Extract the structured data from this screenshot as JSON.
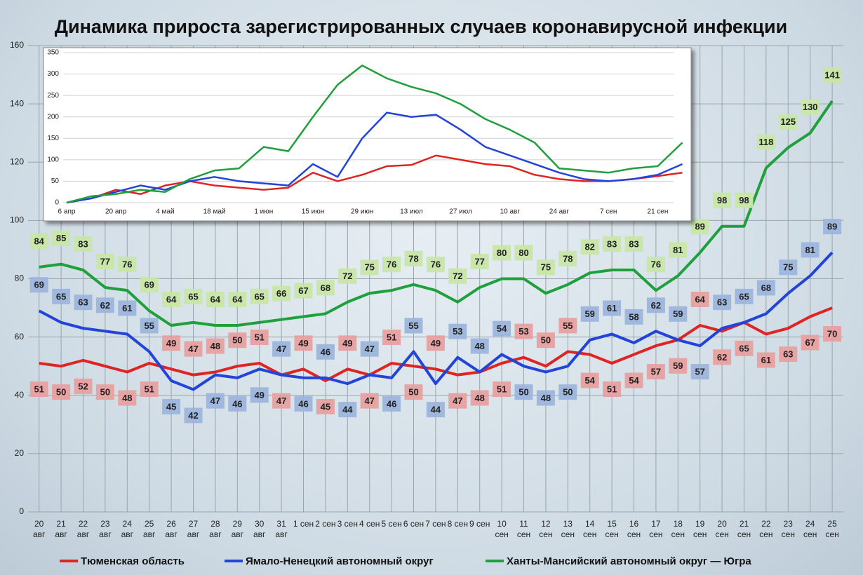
{
  "chart_data": [
    {
      "type": "line",
      "title": "Динамика прироста зарегистрированных случаев коронавирусной инфекции",
      "categories": [
        "20 авг",
        "21 авг",
        "22 авг",
        "23 авг",
        "24 авг",
        "25 авг",
        "26 авг",
        "27 авг",
        "28 авг",
        "29 авг",
        "30 авг",
        "31 авг",
        "1 сен",
        "2 сен",
        "3 сен",
        "4 сен",
        "5 сен",
        "6 сен",
        "7 сен",
        "8 сен",
        "9 сен",
        "10 сен",
        "11 сен",
        "12 сен",
        "13 сен",
        "14 сен",
        "15 сен",
        "16 сен",
        "17 сен",
        "18 сен",
        "19 сен",
        "20 сен",
        "21 сен",
        "22 сен",
        "23 сен",
        "24 сен",
        "25 сен"
      ],
      "series": [
        {
          "name": "Тюменская область",
          "color": "#e02424",
          "label_color": "#e8a0a0",
          "values": [
            51,
            50,
            52,
            50,
            48,
            51,
            49,
            47,
            48,
            50,
            51,
            47,
            49,
            45,
            49,
            47,
            51,
            50,
            49,
            47,
            48,
            51,
            53,
            50,
            55,
            54,
            51,
            54,
            57,
            59,
            64,
            62,
            65,
            61,
            63,
            67,
            70
          ]
        },
        {
          "name": "Ямало-Ненецкий автономный округ",
          "color": "#2244d8",
          "label_color": "#9db5dc",
          "values": [
            69,
            65,
            63,
            62,
            61,
            55,
            45,
            42,
            47,
            46,
            49,
            47,
            46,
            46,
            44,
            47,
            46,
            55,
            44,
            53,
            48,
            54,
            50,
            48,
            50,
            59,
            61,
            58,
            62,
            59,
            57,
            63,
            65,
            68,
            75,
            81,
            89
          ]
        },
        {
          "name": "Ханты-Мансийский автономный округ — Югра",
          "color": "#1fa03c",
          "label_color": "#c8e6a8",
          "values": [
            84,
            85,
            83,
            77,
            76,
            69,
            64,
            65,
            64,
            64,
            65,
            66,
            67,
            68,
            72,
            75,
            76,
            78,
            76,
            72,
            77,
            80,
            80,
            75,
            78,
            82,
            83,
            83,
            76,
            81,
            89,
            98,
            98,
            118,
            125,
            130,
            141
          ]
        }
      ],
      "ylim": [
        0,
        160
      ],
      "yticks": [
        0,
        20,
        40,
        60,
        80,
        100,
        120,
        140,
        160
      ],
      "grid": true
    },
    {
      "type": "line",
      "categories": [
        "6 апр",
        null,
        "20 апр",
        null,
        "4 май",
        null,
        "18 май",
        null,
        "1 июн",
        null,
        "15 июн",
        null,
        "29 июн",
        null,
        "13 июл",
        null,
        "27 июл",
        null,
        "10 авг",
        null,
        "24 авг",
        null,
        "7 сен",
        null,
        "21 сен",
        null
      ],
      "series": [
        {
          "color": "#e02424",
          "values": [
            0,
            10,
            30,
            20,
            40,
            50,
            40,
            35,
            30,
            35,
            70,
            50,
            65,
            85,
            88,
            110,
            100,
            90,
            85,
            65,
            55,
            50,
            50,
            55,
            62,
            70
          ]
        },
        {
          "color": "#2244d8",
          "values": [
            0,
            10,
            25,
            40,
            30,
            50,
            60,
            50,
            45,
            40,
            90,
            60,
            150,
            210,
            200,
            205,
            170,
            130,
            110,
            90,
            70,
            55,
            50,
            55,
            65,
            90
          ]
        },
        {
          "color": "#1fa03c",
          "values": [
            0,
            15,
            20,
            30,
            25,
            55,
            75,
            80,
            130,
            120,
            200,
            275,
            320,
            290,
            270,
            255,
            230,
            195,
            170,
            140,
            80,
            75,
            70,
            80,
            85,
            140
          ]
        }
      ],
      "ylim": [
        0,
        350
      ],
      "yticks": [
        0,
        50,
        100,
        150,
        200,
        250,
        300,
        350
      ],
      "grid": true
    }
  ]
}
